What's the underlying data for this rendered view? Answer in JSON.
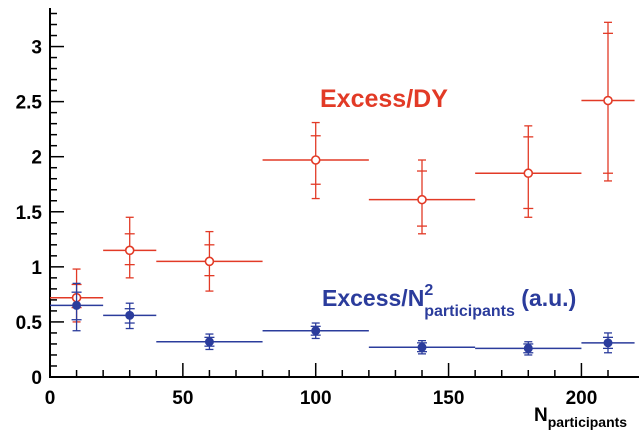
{
  "chart_data": {
    "type": "scatter",
    "xlabel_main": "N",
    "xlabel_sub": "participants",
    "xlim": [
      0,
      210
    ],
    "ylim": [
      0,
      3.35
    ],
    "x_ticks": [
      0,
      50,
      100,
      150,
      200
    ],
    "y_ticks": [
      0,
      0.5,
      1,
      1.5,
      2,
      2.5,
      3
    ],
    "x_tick_labels": [
      "0",
      "50",
      "100",
      "150",
      "200"
    ],
    "y_tick_labels": [
      "0",
      "0.5",
      "1",
      "1.5",
      "2",
      "2.5",
      "3"
    ],
    "grid": false,
    "series": [
      {
        "label": "Excess/DY",
        "color": "#e23a26",
        "marker": "open-circle",
        "points": [
          {
            "x": 10,
            "xlo": 0,
            "xhi": 20,
            "y": 0.72,
            "e1lo": 0.63,
            "e1hi": 0.84,
            "e2lo": 0.5,
            "e2hi": 0.98
          },
          {
            "x": 30,
            "xlo": 20,
            "xhi": 40,
            "y": 1.15,
            "e1lo": 1.02,
            "e1hi": 1.3,
            "e2lo": 0.9,
            "e2hi": 1.45
          },
          {
            "x": 60,
            "xlo": 40,
            "xhi": 80,
            "y": 1.05,
            "e1lo": 0.92,
            "e1hi": 1.2,
            "e2lo": 0.78,
            "e2hi": 1.32
          },
          {
            "x": 100,
            "xlo": 80,
            "xhi": 120,
            "y": 1.97,
            "e1lo": 1.75,
            "e1hi": 2.19,
            "e2lo": 1.62,
            "e2hi": 2.31
          },
          {
            "x": 140,
            "xlo": 120,
            "xhi": 160,
            "y": 1.61,
            "e1lo": 1.37,
            "e1hi": 1.87,
            "e2lo": 1.3,
            "e2hi": 1.97
          },
          {
            "x": 180,
            "xlo": 160,
            "xhi": 200,
            "y": 1.85,
            "e1lo": 1.53,
            "e1hi": 2.18,
            "e2lo": 1.45,
            "e2hi": 2.28
          },
          {
            "x": 210,
            "xlo": 200,
            "xhi": 220,
            "y": 2.51,
            "e1lo": 1.85,
            "e1hi": 3.12,
            "e2lo": 1.78,
            "e2hi": 3.22
          }
        ]
      },
      {
        "label": "Excess/N participants (a.u.)",
        "color": "#2b3c9c",
        "marker": "filled-circle",
        "points": [
          {
            "x": 10,
            "xlo": 0,
            "xhi": 20,
            "y": 0.65,
            "e1lo": 0.52,
            "e1hi": 0.77,
            "e2lo": 0.42,
            "e2hi": 0.85
          },
          {
            "x": 30,
            "xlo": 20,
            "xhi": 40,
            "y": 0.56,
            "e1lo": 0.49,
            "e1hi": 0.62,
            "e2lo": 0.44,
            "e2hi": 0.67
          },
          {
            "x": 60,
            "xlo": 40,
            "xhi": 80,
            "y": 0.32,
            "e1lo": 0.28,
            "e1hi": 0.36,
            "e2lo": 0.25,
            "e2hi": 0.39
          },
          {
            "x": 100,
            "xlo": 80,
            "xhi": 120,
            "y": 0.42,
            "e1lo": 0.38,
            "e1hi": 0.46,
            "e2lo": 0.35,
            "e2hi": 0.49
          },
          {
            "x": 140,
            "xlo": 120,
            "xhi": 160,
            "y": 0.27,
            "e1lo": 0.23,
            "e1hi": 0.31,
            "e2lo": 0.21,
            "e2hi": 0.33
          },
          {
            "x": 180,
            "xlo": 160,
            "xhi": 200,
            "y": 0.26,
            "e1lo": 0.22,
            "e1hi": 0.3,
            "e2lo": 0.2,
            "e2hi": 0.32
          },
          {
            "x": 210,
            "xlo": 200,
            "xhi": 220,
            "y": 0.31,
            "e1lo": 0.26,
            "e1hi": 0.36,
            "e2lo": 0.22,
            "e2hi": 0.4
          }
        ]
      }
    ],
    "annotations": {
      "red_text": "Excess/DY",
      "blue_main": "Excess/N",
      "blue_sup": "2",
      "blue_sub": "participants",
      "blue_tail": " (a.u.)"
    }
  }
}
